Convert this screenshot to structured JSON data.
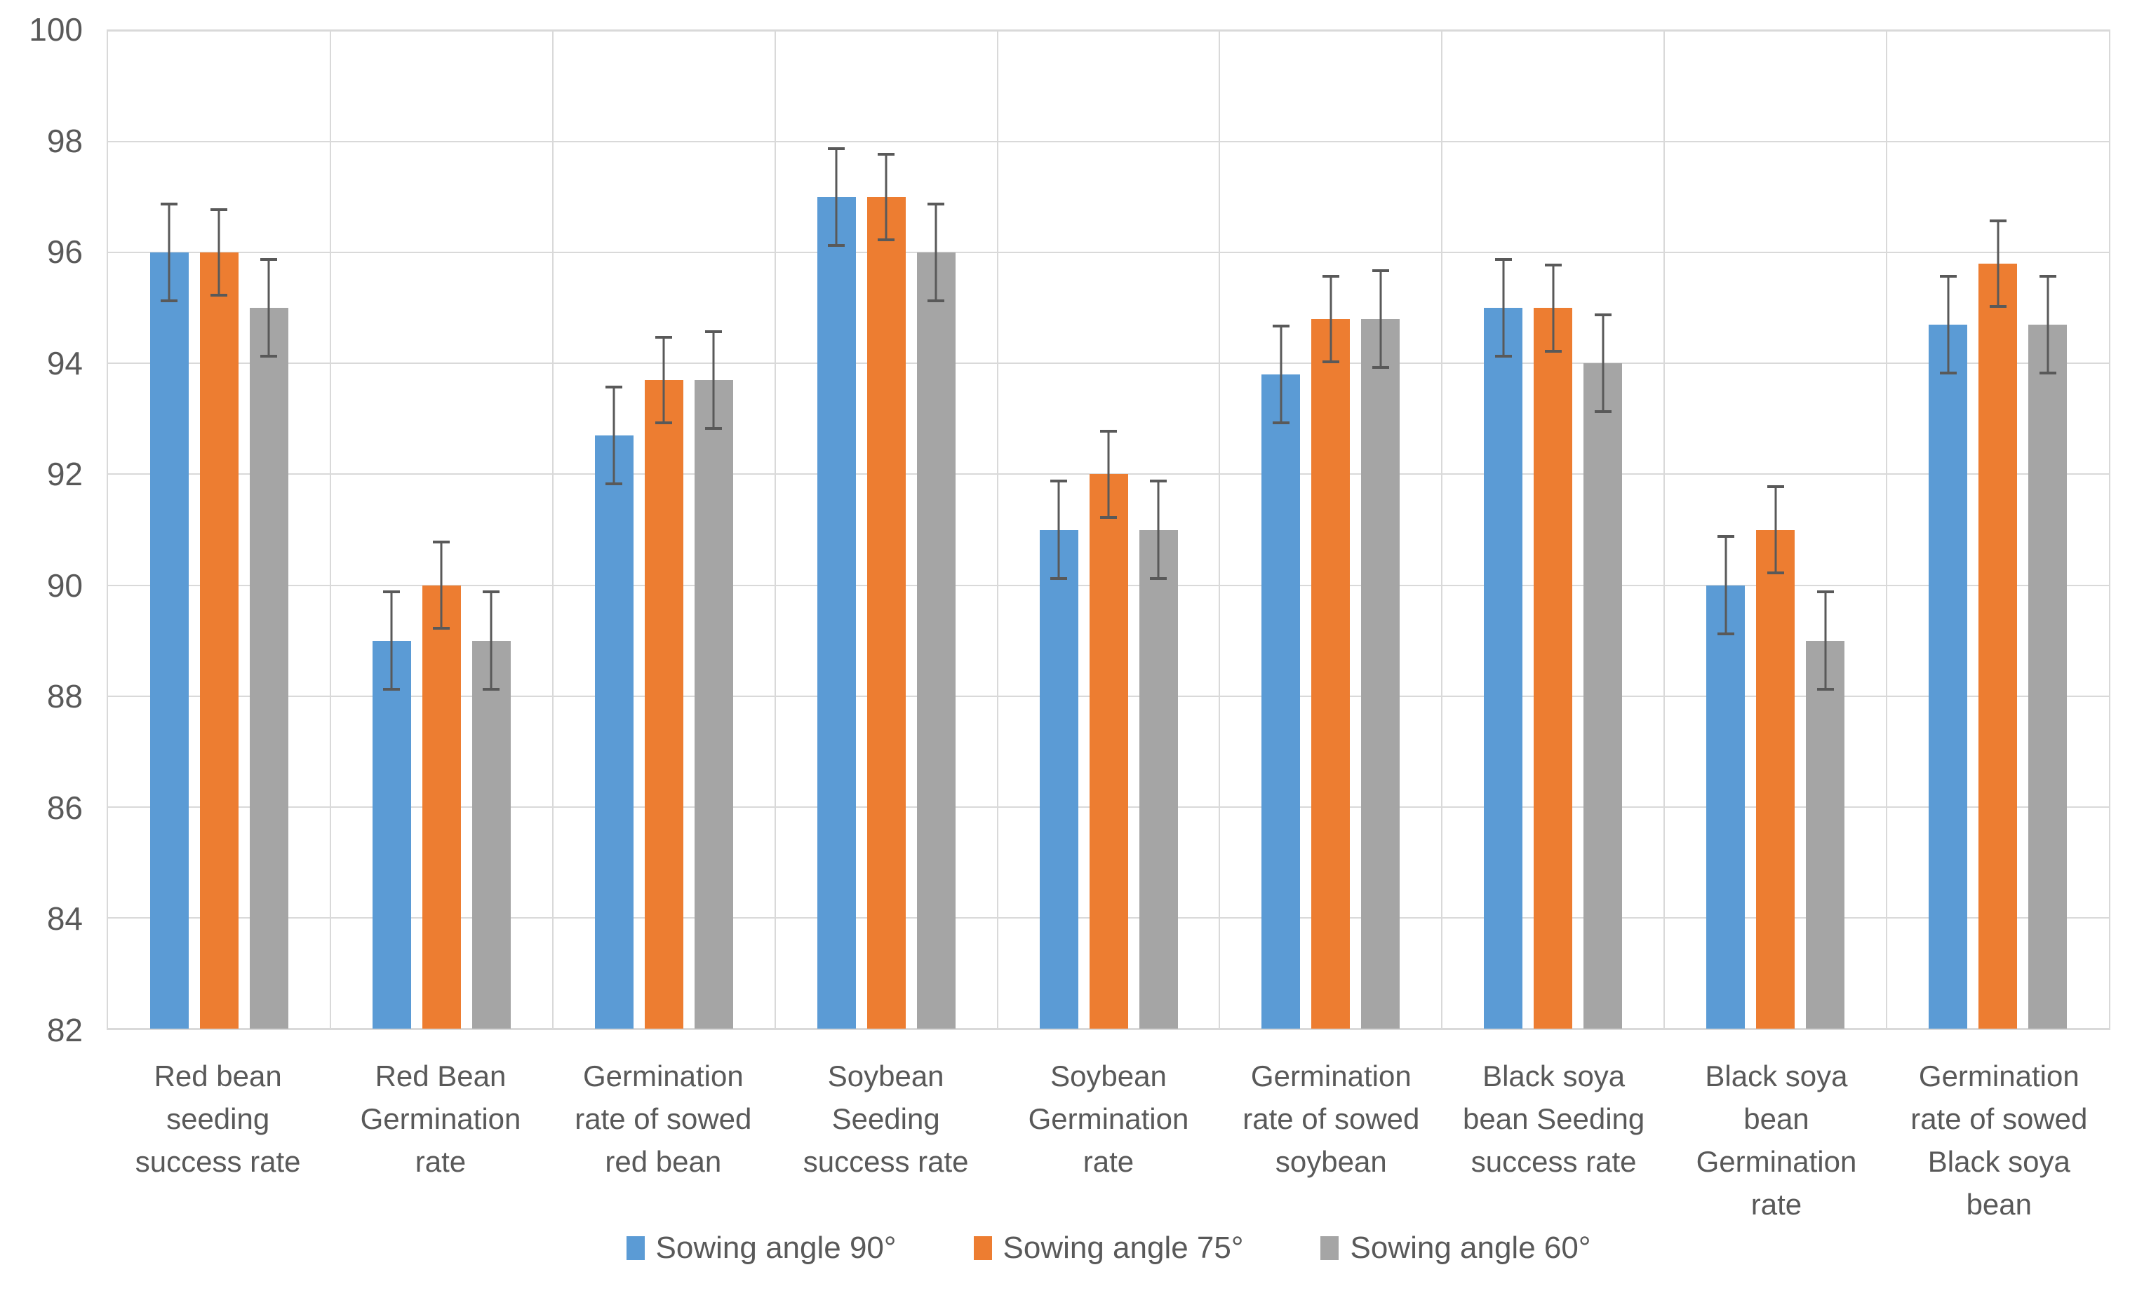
{
  "chart_data": {
    "type": "bar",
    "title": "",
    "xlabel": "",
    "ylabel": "",
    "categories": [
      "Red bean seeding success rate",
      "Red Bean Germination rate",
      "Germination rate of sowed red bean",
      "Soybean Seeding success rate",
      "Soybean Germination rate",
      "Germination rate of sowed soybean",
      "Black soya bean Seeding success rate",
      "Black soya bean Germination rate",
      "Germination rate of sowed Black soya bean"
    ],
    "series": [
      {
        "name": "Sowing angle 90°",
        "color": "#5B9BD5",
        "values": [
          96,
          89,
          92.7,
          97,
          91,
          93.8,
          95,
          90,
          94.7
        ],
        "error": 0.9
      },
      {
        "name": "Sowing angle 75°",
        "color": "#ED7D31",
        "values": [
          96,
          90,
          93.7,
          97,
          92,
          94.8,
          95,
          91,
          95.8
        ],
        "error": 0.8
      },
      {
        "name": "Sowing angle 60°",
        "color": "#A5A5A5",
        "values": [
          95,
          89,
          93.7,
          96,
          91,
          94.8,
          94,
          89,
          94.7
        ],
        "error": 0.9
      }
    ],
    "ylim": [
      82,
      100
    ],
    "yticks": [
      82,
      84,
      86,
      88,
      90,
      92,
      94,
      96,
      98,
      100
    ],
    "grid": true,
    "grid_vertical_group_separators": true,
    "legend_position": "bottom",
    "error_bars": true,
    "colors": {
      "axis_text": "#595959",
      "gridline": "#D9D9D9",
      "error_bar": "#595959",
      "plot_background": "#FFFFFF"
    }
  }
}
